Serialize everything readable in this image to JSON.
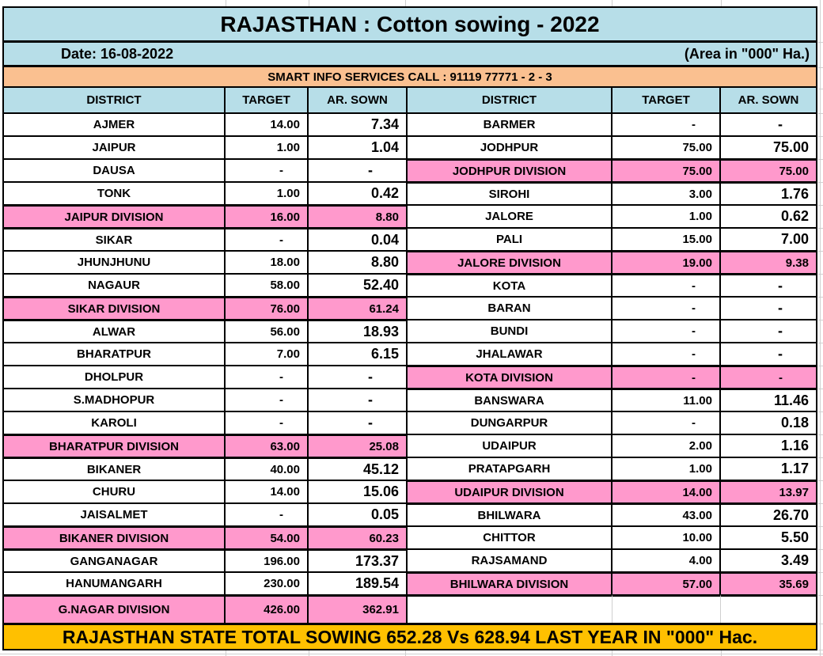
{
  "header": {
    "title": "RAJASTHAN : Cotton sowing - 2022",
    "date": "Date: 16-08-2022",
    "area_note": "(Area in \"000\" Ha.)",
    "banner": "SMART INFO SERVICES CALL : 91119 77771 - 2 - 3"
  },
  "columns": [
    "DISTRICT",
    "TARGET",
    "AR. SOWN",
    "DISTRICT",
    "TARGET",
    "AR. SOWN"
  ],
  "left_rows": [
    {
      "district": "AJMER",
      "target": "14.00",
      "sown": "7.34",
      "division": false
    },
    {
      "district": "JAIPUR",
      "target": "1.00",
      "sown": "1.04",
      "division": false
    },
    {
      "district": "DAUSA",
      "target": "-",
      "sown": "-",
      "division": false
    },
    {
      "district": "TONK",
      "target": "1.00",
      "sown": "0.42",
      "division": false
    },
    {
      "district": "JAIPUR DIVISION",
      "target": "16.00",
      "sown": "8.80",
      "division": true
    },
    {
      "district": "SIKAR",
      "target": "-",
      "sown": "0.04",
      "division": false
    },
    {
      "district": "JHUNJHUNU",
      "target": "18.00",
      "sown": "8.80",
      "division": false
    },
    {
      "district": "NAGAUR",
      "target": "58.00",
      "sown": "52.40",
      "division": false
    },
    {
      "district": "SIKAR DIVISION",
      "target": "76.00",
      "sown": "61.24",
      "division": true
    },
    {
      "district": "ALWAR",
      "target": "56.00",
      "sown": "18.93",
      "division": false
    },
    {
      "district": "BHARATPUR",
      "target": "7.00",
      "sown": "6.15",
      "division": false
    },
    {
      "district": "DHOLPUR",
      "target": "-",
      "sown": "-",
      "division": false
    },
    {
      "district": "S.MADHOPUR",
      "target": "-",
      "sown": "-",
      "division": false
    },
    {
      "district": "KAROLI",
      "target": "-",
      "sown": "-",
      "division": false
    },
    {
      "district": "BHARATPUR DIVISION",
      "target": "63.00",
      "sown": "25.08",
      "division": true
    },
    {
      "district": "BIKANER",
      "target": "40.00",
      "sown": "45.12",
      "division": false
    },
    {
      "district": "CHURU",
      "target": "14.00",
      "sown": "15.06",
      "division": false
    },
    {
      "district": "JAISALMET",
      "target": "-",
      "sown": "0.05",
      "division": false
    },
    {
      "district": "BIKANER DIVISION",
      "target": "54.00",
      "sown": "60.23",
      "division": true
    },
    {
      "district": "GANGANAGAR",
      "target": "196.00",
      "sown": "173.37",
      "division": false
    },
    {
      "district": "HANUMANGARH",
      "target": "230.00",
      "sown": "189.54",
      "division": false
    },
    {
      "district": "G.NAGAR DIVISION",
      "target": "426.00",
      "sown": "362.91",
      "division": true
    }
  ],
  "right_rows": [
    {
      "district": "BARMER",
      "target": "-",
      "sown": "-",
      "division": false
    },
    {
      "district": "JODHPUR",
      "target": "75.00",
      "sown": "75.00",
      "division": false
    },
    {
      "district": "JODHPUR DIVISION",
      "target": "75.00",
      "sown": "75.00",
      "division": true
    },
    {
      "district": "SIROHI",
      "target": "3.00",
      "sown": "1.76",
      "division": false
    },
    {
      "district": "JALORE",
      "target": "1.00",
      "sown": "0.62",
      "division": false
    },
    {
      "district": "PALI",
      "target": "15.00",
      "sown": "7.00",
      "division": false
    },
    {
      "district": "JALORE DIVISION",
      "target": "19.00",
      "sown": "9.38",
      "division": true
    },
    {
      "district": "KOTA",
      "target": "-",
      "sown": "-",
      "division": false
    },
    {
      "district": "BARAN",
      "target": "-",
      "sown": "-",
      "division": false
    },
    {
      "district": "BUNDI",
      "target": "-",
      "sown": "-",
      "division": false
    },
    {
      "district": "JHALAWAR",
      "target": "-",
      "sown": "-",
      "division": false
    },
    {
      "district": "KOTA DIVISION",
      "target": "-",
      "sown": "-",
      "division": true
    },
    {
      "district": "BANSWARA",
      "target": "11.00",
      "sown": "11.46",
      "division": false
    },
    {
      "district": "DUNGARPUR",
      "target": "-",
      "sown": "0.18",
      "division": false
    },
    {
      "district": "UDAIPUR",
      "target": "2.00",
      "sown": "1.16",
      "division": false
    },
    {
      "district": "PRATAPGARH",
      "target": "1.00",
      "sown": "1.17",
      "division": false
    },
    {
      "district": "UDAIPUR DIVISION",
      "target": "14.00",
      "sown": "13.97",
      "division": true
    },
    {
      "district": "BHILWARA",
      "target": "43.00",
      "sown": "26.70",
      "division": false
    },
    {
      "district": "CHITTOR",
      "target": "10.00",
      "sown": "5.50",
      "division": false
    },
    {
      "district": "RAJSAMAND",
      "target": "4.00",
      "sown": "3.49",
      "division": false
    },
    {
      "district": "BHILWARA DIVISION",
      "target": "57.00",
      "sown": "35.69",
      "division": true
    },
    {
      "district": "",
      "target": "",
      "sown": "",
      "division": false,
      "empty": true
    }
  ],
  "footer": {
    "text": "RAJASTHAN STATE TOTAL SOWING 652.28 Vs 628.94 LAST YEAR IN \"000\" Hac."
  },
  "colors": {
    "panel_bg": "#B7DEE8",
    "banner_bg": "#FAC090",
    "division_bg": "#FF99CC",
    "footer_bg": "#FFC000",
    "border": "#000000",
    "gridline": "#CFCFCF"
  }
}
